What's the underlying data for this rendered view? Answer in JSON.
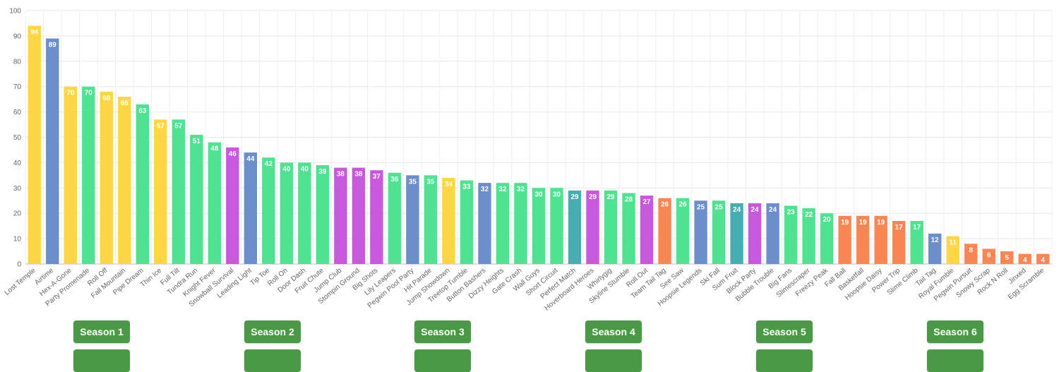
{
  "chart_data": {
    "type": "bar",
    "title": "",
    "xlabel": "",
    "ylabel": "",
    "ylim": [
      0,
      100
    ],
    "yticks": [
      "0",
      "10",
      "20",
      "30",
      "40",
      "50",
      "60",
      "70",
      "80",
      "90",
      "100"
    ],
    "grid": true,
    "colors": {
      "yellow": "#fdd646",
      "blue": "#6a8fcb",
      "green": "#4fe290",
      "purple": "#c859de",
      "teal": "#46aeb0",
      "orange": "#fa8653"
    },
    "categories": [
      "Lost Temple",
      "Airtime",
      "Hex-A-Gone",
      "Party Promenade",
      "Roll Off",
      "Fall Mountain",
      "Pipe Dream",
      "Thin Ice",
      "Full Tilt",
      "Tundra Run",
      "Knight Fever",
      "Snowball Survival",
      "Leading Light",
      "Tip Toe",
      "Roll On",
      "Door Dash",
      "Fruit Chute",
      "Jump Club",
      "Stompin Ground",
      "Big Shots",
      "Lily Leapers",
      "Pegwin Pool Party",
      "Hit Parade",
      "Jump Showdown",
      "Treetop Tumble",
      "Button Bashers",
      "Dizzy Heights",
      "Gate Crash",
      "Wall Guys",
      "Short Circuit",
      "Perfect Match",
      "Hoverboard Heroes",
      "Whirlygig",
      "Skyline Stumble",
      "Roll Out",
      "Team Tail Tag",
      "See Saw",
      "Hoopsie Legends",
      "Ski Fall",
      "Sum Fruit",
      "Block Party",
      "Bubble Trouble",
      "Big Fans",
      "Slimescraper",
      "Freezy Peak",
      "Fall Ball",
      "Basketfall",
      "Hoopsie Daisy",
      "Power Trip",
      "Slime Climb",
      "Tail Tag",
      "Royal Fumble",
      "Pegwin Pursuit",
      "Snowy Scrap",
      "Rock N Roll",
      "Jinxed",
      "Egg Scramble"
    ],
    "values": [
      94,
      89,
      70,
      70,
      68,
      66,
      63,
      57,
      57,
      51,
      48,
      46,
      44,
      42,
      40,
      40,
      39,
      38,
      38,
      37,
      36,
      35,
      35,
      34,
      33,
      32,
      32,
      32,
      30,
      30,
      29,
      29,
      29,
      28,
      27,
      26,
      26,
      25,
      25,
      24,
      24,
      24,
      23,
      22,
      20,
      19,
      19,
      19,
      17,
      17,
      12,
      11,
      8,
      6,
      5,
      4,
      4
    ],
    "bar_colors": [
      "yellow",
      "blue",
      "yellow",
      "green",
      "yellow",
      "yellow",
      "green",
      "yellow",
      "green",
      "green",
      "green",
      "purple",
      "blue",
      "green",
      "green",
      "green",
      "green",
      "purple",
      "purple",
      "purple",
      "green",
      "blue",
      "green",
      "yellow",
      "green",
      "blue",
      "green",
      "green",
      "green",
      "green",
      "teal",
      "purple",
      "green",
      "green",
      "purple",
      "orange",
      "green",
      "blue",
      "green",
      "teal",
      "purple",
      "blue",
      "green",
      "green",
      "green",
      "orange",
      "orange",
      "orange",
      "orange",
      "green",
      "blue",
      "yellow",
      "orange",
      "orange",
      "orange",
      "orange",
      "orange"
    ]
  },
  "seasons": [
    {
      "label": "Season 1"
    },
    {
      "label": "Season 2"
    },
    {
      "label": "Season 3"
    },
    {
      "label": "Season 4"
    },
    {
      "label": "Season 5"
    },
    {
      "label": "Season 6"
    }
  ]
}
